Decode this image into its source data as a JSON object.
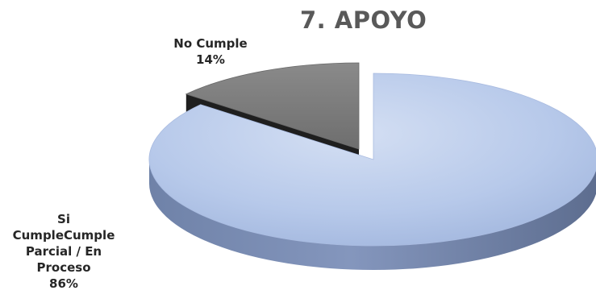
{
  "chart_data": {
    "type": "pie",
    "title": "7. APOYO",
    "style": "3d-exploded",
    "slices": [
      {
        "name": "Si CumpleCumple Parcial / En Proceso",
        "label_lines": [
          "Si",
          "CumpleCumple",
          "Parcial / En",
          "Proceso"
        ],
        "value": 86,
        "percent_label": "86%",
        "color": "#b4c7e7"
      },
      {
        "name": "No Cumple",
        "label_lines": [
          "No Cumple"
        ],
        "value": 14,
        "percent_label": "14%",
        "color": "#7f7f7f"
      }
    ]
  }
}
